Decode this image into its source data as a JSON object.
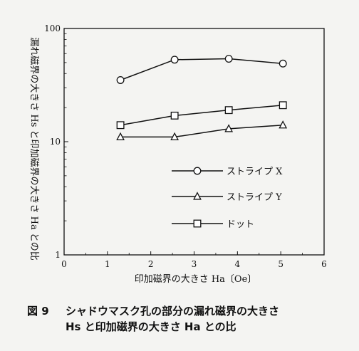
{
  "chart_data": {
    "type": "line",
    "y_scale": "log",
    "ylim": [
      1,
      100
    ],
    "xlim": [
      0,
      6
    ],
    "x_ticks": [
      0,
      1,
      2,
      3,
      4,
      5,
      6
    ],
    "y_ticks": [
      {
        "value": 1,
        "label": "1"
      },
      {
        "value": 10,
        "label": "10"
      },
      {
        "value": 100,
        "label": "100"
      }
    ],
    "xlabel": "印加磁界の大きさ Ha〔Oe〕",
    "ylabel": "漏れ磁界の大きさ Hs と印加磁界の大きさ Ha との比",
    "grid": false,
    "legend_position": "center-right",
    "series": [
      {
        "name": "ストライプ X",
        "marker": "circle",
        "x": [
          1.3,
          2.55,
          3.8,
          5.05
        ],
        "y": [
          35,
          53,
          54,
          49
        ]
      },
      {
        "name": "ストライプ Y",
        "marker": "triangle",
        "x": [
          1.3,
          2.55,
          3.8,
          5.05
        ],
        "y": [
          11,
          11,
          13,
          14
        ]
      },
      {
        "name": "ドット",
        "marker": "square",
        "x": [
          1.3,
          2.55,
          3.8,
          5.05
        ],
        "y": [
          14,
          17,
          19,
          21
        ]
      }
    ]
  },
  "caption": {
    "number": "図 9",
    "line1": "シャドウマスク孔の部分の漏れ磁界の大きさ",
    "line2": "Hs と印加磁界の大きさ Ha との比"
  }
}
